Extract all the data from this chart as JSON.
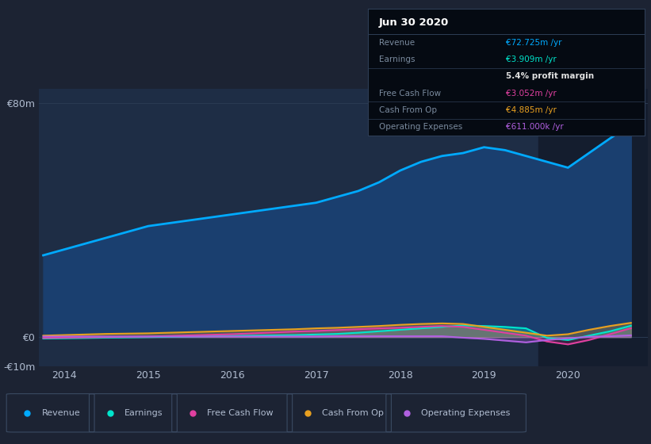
{
  "background_color": "#1c2333",
  "chart_bg_color": "#1e2d45",
  "overlay_bg_color": "#141d2e",
  "ylim": [
    -10,
    85
  ],
  "yticks": [
    -10,
    0,
    80
  ],
  "ytick_labels": [
    "-€10m",
    "€0",
    "€80m"
  ],
  "xlim_start": 2013.7,
  "xlim_end": 2020.95,
  "xticks": [
    2014,
    2015,
    2016,
    2017,
    2018,
    2019,
    2020
  ],
  "overlay_x_start": 2019.65,
  "years": [
    2013.75,
    2014.0,
    2014.25,
    2014.5,
    2014.75,
    2015.0,
    2015.25,
    2015.5,
    2015.75,
    2016.0,
    2016.25,
    2016.5,
    2016.75,
    2017.0,
    2017.25,
    2017.5,
    2017.75,
    2018.0,
    2018.25,
    2018.5,
    2018.75,
    2019.0,
    2019.25,
    2019.5,
    2019.75,
    2020.0,
    2020.25,
    2020.5,
    2020.75
  ],
  "revenue": [
    28,
    30,
    32,
    34,
    36,
    38,
    39,
    40,
    41,
    42,
    43,
    44,
    45,
    46,
    48,
    50,
    53,
    57,
    60,
    62,
    63,
    65,
    64,
    62,
    60,
    58,
    63,
    68,
    72.725
  ],
  "earnings": [
    -0.5,
    -0.4,
    -0.3,
    -0.2,
    -0.1,
    0.0,
    0.1,
    0.2,
    0.3,
    0.4,
    0.5,
    0.6,
    0.7,
    0.9,
    1.1,
    1.5,
    2.0,
    2.5,
    3.0,
    3.5,
    4.0,
    3.8,
    3.5,
    3.0,
    -0.3,
    -1.0,
    0.5,
    2.0,
    3.909
  ],
  "free_cash_flow": [
    -0.3,
    -0.2,
    -0.1,
    0.0,
    0.1,
    0.2,
    0.4,
    0.6,
    0.8,
    1.0,
    1.3,
    1.6,
    1.9,
    2.1,
    2.4,
    2.7,
    3.0,
    3.2,
    3.5,
    3.8,
    3.5,
    2.5,
    1.5,
    0.5,
    -1.5,
    -2.5,
    -1.0,
    1.0,
    3.052
  ],
  "cash_from_op": [
    0.5,
    0.7,
    0.9,
    1.1,
    1.2,
    1.3,
    1.5,
    1.7,
    1.9,
    2.1,
    2.3,
    2.5,
    2.7,
    3.0,
    3.2,
    3.5,
    3.8,
    4.2,
    4.5,
    4.7,
    4.5,
    3.5,
    2.5,
    1.5,
    0.5,
    1.0,
    2.5,
    3.8,
    4.885
  ],
  "operating_expenses": [
    0.2,
    0.2,
    0.2,
    0.2,
    0.2,
    0.2,
    0.2,
    0.2,
    0.2,
    0.2,
    0.2,
    0.2,
    0.2,
    0.2,
    0.3,
    0.3,
    0.3,
    0.3,
    0.3,
    0.3,
    -0.2,
    -0.6,
    -1.2,
    -1.8,
    -1.0,
    -0.4,
    0.1,
    0.3,
    0.611
  ],
  "revenue_color": "#00aaff",
  "revenue_fill": "#1a3f6f",
  "earnings_color": "#00e5cc",
  "earnings_fill": "#00e5cc",
  "free_cash_flow_color": "#e040a0",
  "free_cash_flow_fill": "#e040a0",
  "cash_from_op_color": "#e8a020",
  "cash_from_op_fill": "#e8a020",
  "operating_expenses_color": "#b060e0",
  "operating_expenses_fill": "#b060e0",
  "text_color": "#b0bcd0",
  "grid_color": "#2a3a52",
  "info_box": {
    "title": "Jun 30 2020",
    "rows": [
      {
        "label": "Revenue",
        "value": "€72.725m /yr",
        "value_color": "#00aaff"
      },
      {
        "label": "Earnings",
        "value": "€3.909m /yr",
        "value_color": "#00e5cc"
      },
      {
        "label": "",
        "value": "5.4% profit margin",
        "value_color": "#e0e0e0",
        "bold": true
      },
      {
        "label": "Free Cash Flow",
        "value": "€3.052m /yr",
        "value_color": "#e040a0"
      },
      {
        "label": "Cash From Op",
        "value": "€4.885m /yr",
        "value_color": "#e8a020"
      },
      {
        "label": "Operating Expenses",
        "value": "€611.000k /yr",
        "value_color": "#b060e0"
      }
    ],
    "bg_color": "#050a12",
    "border_color": "#2e3e56",
    "label_color": "#7a8a9e",
    "sep_rows": [
      1,
      3,
      4
    ]
  },
  "legend_items": [
    {
      "label": "Revenue",
      "color": "#00aaff"
    },
    {
      "label": "Earnings",
      "color": "#00e5cc"
    },
    {
      "label": "Free Cash Flow",
      "color": "#e040a0"
    },
    {
      "label": "Cash From Op",
      "color": "#e8a020"
    },
    {
      "label": "Operating Expenses",
      "color": "#b060e0"
    }
  ]
}
